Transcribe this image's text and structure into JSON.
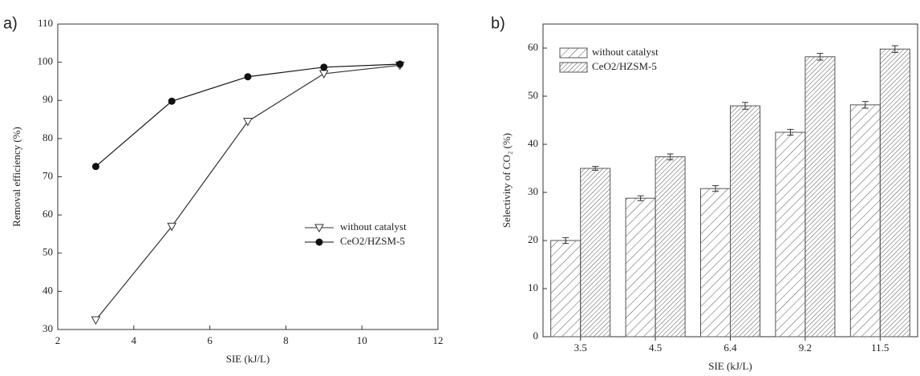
{
  "chart_data": [
    {
      "type": "line",
      "panel_label": "a)",
      "x_label": "SIE (kJ/L)",
      "y_label": "Removal efficiency (%)",
      "x": [
        3,
        5,
        7,
        9,
        11
      ],
      "xlim": [
        2,
        12
      ],
      "xticks": [
        2,
        4,
        6,
        8,
        10,
        12
      ],
      "ylim": [
        30,
        110
      ],
      "yticks": [
        30,
        40,
        50,
        60,
        70,
        80,
        90,
        100,
        110
      ],
      "series": [
        {
          "name": "without catalyst",
          "color": "#333333",
          "marker": "triangle-down-open",
          "values": [
            32.5,
            57,
            84.5,
            97,
            99.2
          ]
        },
        {
          "name": "CeO2/HZSM-5",
          "color": "#111111",
          "marker": "circle-filled",
          "values": [
            72.7,
            89.8,
            96.2,
            98.7,
            99.5
          ]
        }
      ],
      "legend": "lower-right"
    },
    {
      "type": "bar",
      "panel_label": "b)",
      "x_label": "SIE (kJ/L)",
      "y_label": "Selectivity of CO₂ (%)",
      "categories": [
        "3.5",
        "4.5",
        "6.4",
        "9.2",
        "11.5"
      ],
      "ylim": [
        0,
        65
      ],
      "yticks": [
        0,
        10,
        20,
        30,
        40,
        50,
        60
      ],
      "series": [
        {
          "name": "without catalyst",
          "color": "#555555",
          "hatch": "sparse",
          "values": [
            20,
            28.8,
            30.8,
            42.5,
            48.2
          ],
          "errors": [
            0.6,
            0.5,
            0.6,
            0.6,
            0.7
          ]
        },
        {
          "name": "CeO2/HZSM-5",
          "color": "#555555",
          "hatch": "dense",
          "values": [
            35,
            37.4,
            48,
            58.2,
            59.8
          ],
          "errors": [
            0.4,
            0.6,
            0.7,
            0.7,
            0.7
          ]
        }
      ],
      "legend": "upper-left"
    }
  ]
}
